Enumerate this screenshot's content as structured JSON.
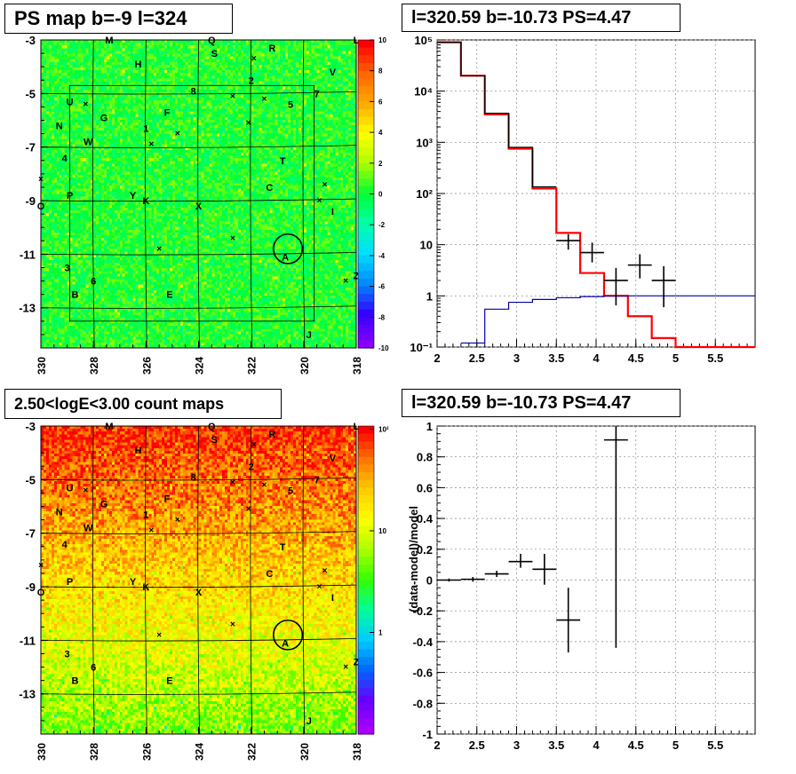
{
  "panels": {
    "ps_map": {
      "title": "PS map b=-9 l=324",
      "x_ticks": [
        "330",
        "328",
        "326",
        "324",
        "322",
        "320",
        "318"
      ],
      "y_ticks": [
        "-3",
        "-5",
        "-7",
        "-9",
        "-11",
        "-13"
      ],
      "colorbar_ticks": [
        "10",
        "8",
        "6",
        "4",
        "2",
        "0",
        "-2",
        "-4",
        "-6",
        "-8",
        "-10"
      ],
      "colorbar_colors": [
        "#ff0000",
        "#ff6600",
        "#ffaa00",
        "#ffff00",
        "#aaff00",
        "#00ff33",
        "#00ffaa",
        "#00ddff",
        "#0088ff",
        "#3300ff",
        "#8800ff"
      ],
      "map_base_color": "#33ee44"
    },
    "count_map": {
      "title": "2.50<logE<3.00 count maps",
      "x_ticks": [
        "330",
        "328",
        "326",
        "324",
        "322",
        "320",
        "318"
      ],
      "y_ticks": [
        "-3",
        "-5",
        "-7",
        "-9",
        "-11",
        "-13"
      ],
      "colorbar_ticks": [
        "10²",
        "10",
        "1"
      ],
      "colorbar_colors": [
        "#ff0000",
        "#ff7700",
        "#ffcc00",
        "#ffff00",
        "#aaff00",
        "#33ff00",
        "#00ff99",
        "#00ccff",
        "#0066ff",
        "#6600ff",
        "#aa00ff"
      ]
    },
    "source_labels": [
      {
        "t": "M",
        "lx": 327.4,
        "b": -3.0
      },
      {
        "t": "Q",
        "lx": 323.5,
        "b": -3.0
      },
      {
        "t": "S",
        "lx": 323.4,
        "b": -3.5
      },
      {
        "t": "R",
        "lx": 321.2,
        "b": -3.3
      },
      {
        "t": "L",
        "lx": 318.0,
        "b": -3.0
      },
      {
        "t": "H",
        "lx": 326.3,
        "b": -3.9
      },
      {
        "t": "V",
        "lx": 318.9,
        "b": -4.2
      },
      {
        "t": "2",
        "lx": 322.0,
        "b": -4.5
      },
      {
        "t": "8",
        "lx": 324.2,
        "b": -4.9
      },
      {
        "t": "7",
        "lx": 319.5,
        "b": -5.0
      },
      {
        "t": "5",
        "lx": 320.5,
        "b": -5.4
      },
      {
        "t": "U",
        "lx": 328.9,
        "b": -5.3
      },
      {
        "t": "F",
        "lx": 325.2,
        "b": -5.7
      },
      {
        "t": "G",
        "lx": 327.6,
        "b": -5.9
      },
      {
        "t": "N",
        "lx": 329.3,
        "b": -6.2
      },
      {
        "t": "1",
        "lx": 326.0,
        "b": -6.3
      },
      {
        "t": "W",
        "lx": 328.2,
        "b": -6.8
      },
      {
        "t": "4",
        "lx": 329.1,
        "b": -7.4
      },
      {
        "t": "T",
        "lx": 320.8,
        "b": -7.5
      },
      {
        "t": "C",
        "lx": 321.3,
        "b": -8.5
      },
      {
        "t": "P",
        "lx": 328.9,
        "b": -8.8
      },
      {
        "t": "Y",
        "lx": 326.5,
        "b": -8.8
      },
      {
        "t": "K",
        "lx": 326.0,
        "b": -9.0
      },
      {
        "t": "X",
        "lx": 324.0,
        "b": -9.2
      },
      {
        "t": "I",
        "lx": 318.9,
        "b": -9.4
      },
      {
        "t": "O",
        "lx": 330.0,
        "b": -9.2
      },
      {
        "t": "A",
        "lx": 320.7,
        "b": -11.1
      },
      {
        "t": "3",
        "lx": 329.0,
        "b": -11.5
      },
      {
        "t": "6",
        "lx": 328.0,
        "b": -12.0
      },
      {
        "t": "Z",
        "lx": 318.0,
        "b": -11.8
      },
      {
        "t": "B",
        "lx": 328.7,
        "b": -12.5
      },
      {
        "t": "E",
        "lx": 325.1,
        "b": -12.5
      },
      {
        "t": "J",
        "lx": 319.8,
        "b": -14.0
      }
    ],
    "source_crosses": [
      {
        "lx": 321.9,
        "b": -3.7
      },
      {
        "lx": 322.7,
        "b": -5.1
      },
      {
        "lx": 321.5,
        "b": -5.2
      },
      {
        "lx": 328.3,
        "b": -5.4
      },
      {
        "lx": 324.8,
        "b": -6.5
      },
      {
        "lx": 325.8,
        "b": -6.9
      },
      {
        "lx": 322.1,
        "b": -6.1
      },
      {
        "lx": 330.0,
        "b": -8.2
      },
      {
        "lx": 319.2,
        "b": -8.4
      },
      {
        "lx": 319.4,
        "b": -9.0
      },
      {
        "lx": 322.7,
        "b": -10.4
      },
      {
        "lx": 325.5,
        "b": -10.8
      },
      {
        "lx": 318.4,
        "b": -12.0
      }
    ],
    "roi_circle": {
      "lx": 320.6,
      "b": -10.8,
      "r": 0.55
    },
    "spectrum": {
      "title": "l=320.59 b=-10.73 PS=4.47"
    },
    "residual": {
      "title": "l=320.59 b=-10.73 PS=4.47"
    }
  },
  "chart_data": [
    {
      "type": "heatmap",
      "title": "PS map b=-9 l=324",
      "xlabel": "",
      "ylabel": "",
      "xlim": [
        330,
        318
      ],
      "ylim": [
        -14.5,
        -3
      ],
      "zlim": [
        -10,
        10
      ],
      "grid": true
    },
    {
      "type": "line",
      "title": "l=320.59 b=-10.73 PS=4.47",
      "xlabel": "",
      "ylabel": "",
      "xlim": [
        2,
        6
      ],
      "ylim": [
        0.1,
        100000
      ],
      "yscale": "log",
      "x_ticks": [
        "2",
        "2.5",
        "3",
        "3.5",
        "4",
        "4.5",
        "5",
        "5.5"
      ],
      "y_ticks": [
        "10⁵",
        "10⁴",
        "10³",
        "10²",
        "10",
        "1",
        "10⁻¹"
      ],
      "grid": true,
      "bin_edges": [
        2.0,
        2.3,
        2.6,
        2.9,
        3.2,
        3.5,
        3.8,
        4.1,
        4.4,
        4.7,
        5.0,
        5.3,
        5.6,
        5.9,
        6.0
      ],
      "series": [
        {
          "color": "#ff0000",
          "style": "step",
          "values": [
            90000,
            20000,
            3500,
            750,
            125,
            17,
            2.8,
            1.0,
            0.4,
            0.15,
            0.1,
            0.1,
            0.1,
            0.1
          ]
        },
        {
          "color": "#000000",
          "style": "step",
          "values": [
            90000,
            20000,
            3700,
            800,
            135,
            null,
            null,
            null,
            null,
            null,
            null,
            null,
            null,
            null
          ]
        },
        {
          "color": "#0000aa",
          "style": "step",
          "values": [
            null,
            0.12,
            0.55,
            0.75,
            0.85,
            0.92,
            0.97,
            1.0,
            1.0,
            1.0,
            1.0,
            1.0,
            1.0,
            1.0
          ]
        },
        {
          "color": "#000000",
          "style": "errorbar",
          "points": [
            {
              "x": 3.65,
              "xerr": 0.15,
              "y": 12,
              "ylo": 8,
              "yhi": 16
            },
            {
              "x": 3.95,
              "xerr": 0.15,
              "y": 7,
              "ylo": 4.5,
              "yhi": 11
            },
            {
              "x": 4.25,
              "xerr": 0.15,
              "y": 2,
              "ylo": 0.65,
              "yhi": 3.5
            },
            {
              "x": 4.55,
              "xerr": 0.15,
              "y": 4,
              "ylo": 2.2,
              "yhi": 6.5
            },
            {
              "x": 4.85,
              "xerr": 0.15,
              "y": 2,
              "ylo": 0.6,
              "yhi": 3.8
            }
          ]
        }
      ]
    },
    {
      "type": "heatmap",
      "title": "2.50<logE<3.00 count maps",
      "xlim": [
        330,
        318
      ],
      "ylim": [
        -14.5,
        -3
      ],
      "zscale": "log",
      "zlim": [
        0.3,
        120
      ],
      "grid": true
    },
    {
      "type": "scatter",
      "title": "l=320.59 b=-10.73 PS=4.47",
      "xlabel": "",
      "ylabel": "(data-model)/model",
      "xlim": [
        2,
        6
      ],
      "ylim": [
        -1,
        1
      ],
      "x_ticks": [
        "2",
        "2.5",
        "3",
        "3.5",
        "4",
        "4.5",
        "5",
        "5.5"
      ],
      "y_ticks": [
        "1",
        "0.8",
        "0.6",
        "0.4",
        "0.2",
        "0",
        "-0.2",
        "-0.4",
        "-0.6",
        "-0.8",
        "-1"
      ],
      "grid": true,
      "series": [
        {
          "color": "#000000",
          "style": "errorbar",
          "points": [
            {
              "x": 2.15,
              "xerr": 0.15,
              "y": 0.0,
              "ylo": -0.01,
              "yhi": 0.01
            },
            {
              "x": 2.45,
              "xerr": 0.15,
              "y": 0.005,
              "ylo": -0.01,
              "yhi": 0.02
            },
            {
              "x": 2.75,
              "xerr": 0.15,
              "y": 0.04,
              "ylo": 0.02,
              "yhi": 0.06
            },
            {
              "x": 3.05,
              "xerr": 0.15,
              "y": 0.12,
              "ylo": 0.08,
              "yhi": 0.17
            },
            {
              "x": 3.35,
              "xerr": 0.15,
              "y": 0.07,
              "ylo": -0.03,
              "yhi": 0.17
            },
            {
              "x": 3.65,
              "xerr": 0.15,
              "y": -0.26,
              "ylo": -0.47,
              "yhi": -0.05
            },
            {
              "x": 4.25,
              "xerr": 0.15,
              "y": 0.91,
              "ylo": -0.44,
              "yhi": 1.0
            }
          ]
        }
      ]
    }
  ]
}
